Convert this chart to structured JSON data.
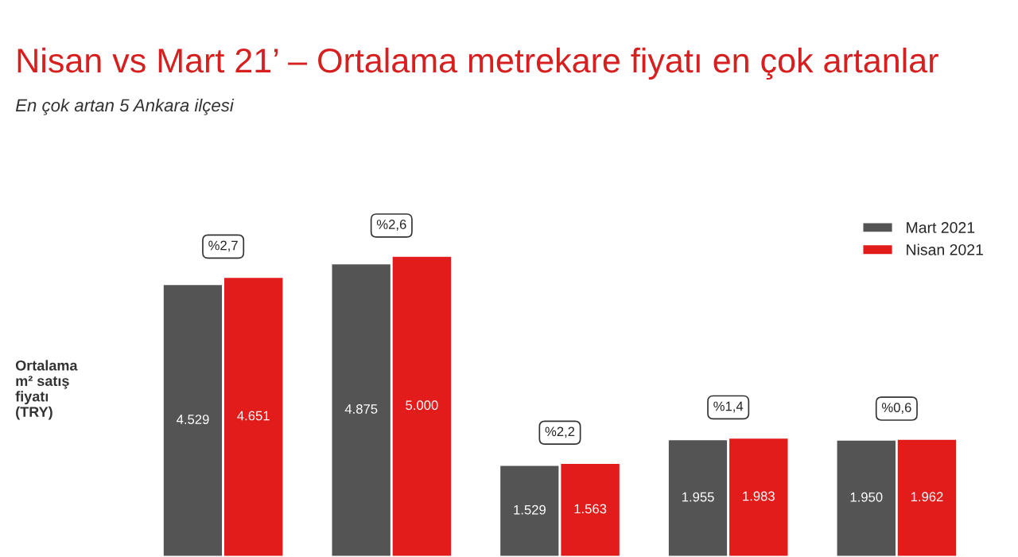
{
  "chart_data": {
    "type": "bar",
    "title": "Nisan vs Mart 21’ – Ortalama metrekare fiyatı en çok artanlar",
    "subtitle": "En çok artan 5 Ankara ilçesi",
    "ylabel": "Ortalama\nm² satış\nfiyatı\n(TRY)",
    "categories": [
      null,
      null,
      null,
      null,
      null
    ],
    "series": [
      {
        "name": "Mart 2021",
        "color": "#545454",
        "values": [
          4529,
          4875,
          1529,
          1955,
          1950
        ],
        "value_labels": [
          "4.529",
          "4.875",
          "1.529",
          "1.955",
          "1.950"
        ]
      },
      {
        "name": "Nisan 2021",
        "color": "#e21b1b",
        "values": [
          4651,
          5000,
          1563,
          1983,
          1962
        ],
        "value_labels": [
          "4.651",
          "5.000",
          "1.563",
          "1.983",
          "1.962"
        ]
      }
    ],
    "annotations": [
      "%2,7",
      "%2,6",
      "%2,2",
      "%1,4",
      "%0,6"
    ],
    "legend": "top right",
    "grid": false
  }
}
